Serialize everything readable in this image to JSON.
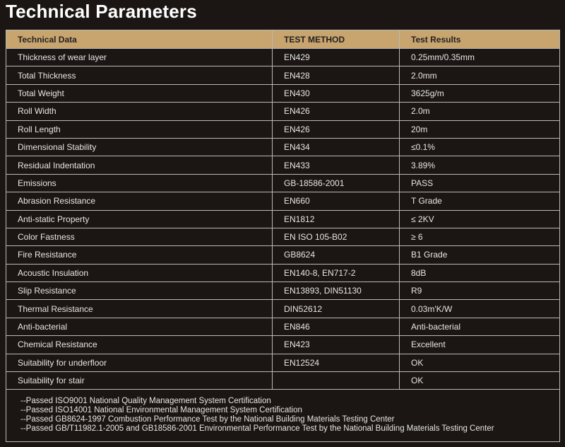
{
  "title": "Technical Parameters",
  "table": {
    "header": [
      "Technical Data",
      "TEST METHOD",
      "Test Results"
    ],
    "rows": [
      {
        "name": "Thickness of wear layer",
        "method": "EN429",
        "result": "0.25mm/0.35mm"
      },
      {
        "name": "Total Thickness",
        "method": "EN428",
        "result": "2.0mm"
      },
      {
        "name": "Total Weight",
        "method": "EN430",
        "result": "3625g/m"
      },
      {
        "name": "Roll Width",
        "method": "EN426",
        "result": "2.0m"
      },
      {
        "name": "Roll Length",
        "method": "EN426",
        "result": "20m"
      },
      {
        "name": "Dimensional Stability",
        "method": "EN434",
        "result": "≤0.1%"
      },
      {
        "name": "Residual Indentation",
        "method": "EN433",
        "result": "3.89%"
      },
      {
        "name": "Emissions",
        "method": "GB-18586-2001",
        "result": "PASS"
      },
      {
        "name": "Abrasion Resistance",
        "method": "EN660",
        "result": "T Grade"
      },
      {
        "name": "Anti-static Property",
        "method": "EN1812",
        "result": "≤ 2KV"
      },
      {
        "name": "Color Fastness",
        "method": "EN ISO 105-B02",
        "result": "≥ 6"
      },
      {
        "name": "Fire Resistance",
        "method": "GB8624",
        "result": "B1 Grade"
      },
      {
        "name": "Acoustic Insulation",
        "method": "EN140-8, EN717-2",
        "result": "8dB"
      },
      {
        "name": "Slip Resistance",
        "method": "EN13893, DIN51130",
        "result": "R9"
      },
      {
        "name": "Thermal Resistance",
        "method": "DIN52612",
        "result": "0.03m'K/W"
      },
      {
        "name": "Anti-bacterial",
        "method": "EN846",
        "result": "Anti-bacterial"
      },
      {
        "name": "Chemical Resistance",
        "method": "EN423",
        "result": "Excellent"
      },
      {
        "name": "Suitability for underfloor",
        "method": "EN12524",
        "result": "OK"
      },
      {
        "name": "Suitability for stair",
        "result": "OK"
      }
    ],
    "notes": [
      "--Passed ISO9001 National Quality Management System Certification",
      "--Passed ISO14001 National Environmental Management System Certification",
      "--Passed GB8624-1997 Combustion Performance Test by the National Building Materials Testing Center",
      "--Passed GB/T11982.1-2005 and GB18586-2001 Environmental Performance Test by the National Building Materials Testing Center"
    ]
  }
}
